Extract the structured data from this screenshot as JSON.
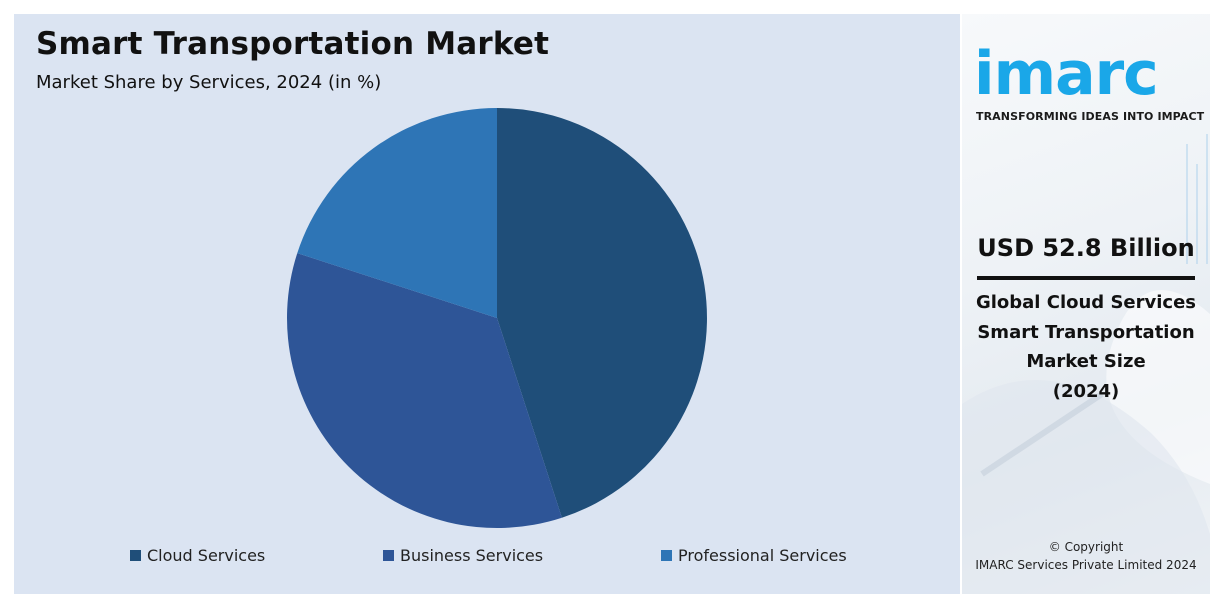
{
  "header": {
    "title": "Smart Transportation Market",
    "subtitle": "Market Share by Services, 2024 (in %)"
  },
  "chart_data": {
    "type": "pie",
    "title": "Smart Transportation Market",
    "subtitle": "Market Share by Services, 2024 (in %)",
    "categories": [
      "Cloud Services",
      "Business Services",
      "Professional Services"
    ],
    "values": [
      45,
      35,
      20
    ],
    "colors": [
      "#1f4e79",
      "#2e5597",
      "#2e75b6"
    ],
    "start_angle_deg": 0,
    "direction": "clockwise",
    "legend_position": "bottom"
  },
  "sidebar": {
    "logo_text": "imarc",
    "tagline": "TRANSFORMING IDEAS INTO IMPACT",
    "stat_value": "USD 52.8 Billion",
    "stat_label_lines": [
      "Global Cloud Services",
      "Smart Transportation",
      "Market Size",
      "(2024)"
    ],
    "copyright_lines": [
      "© Copyright",
      "IMARC Services Private Limited 2024"
    ],
    "brand_color": "#1aa7e8"
  }
}
